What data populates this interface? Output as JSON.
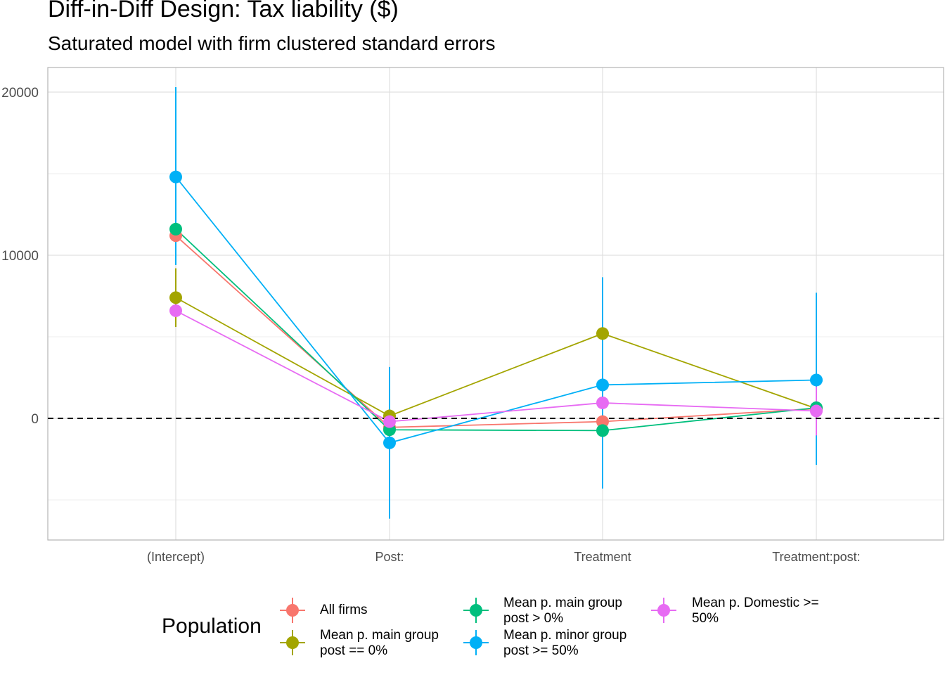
{
  "chart_data": {
    "type": "scatter",
    "title": "Diff-in-Diff Design: Tax liability  ($)",
    "subtitle": "Saturated model with firm clustered standard errors",
    "categories": [
      "(Intercept)",
      "Post:",
      "Treatment",
      "Treatment:post:"
    ],
    "y_ticks": [
      "20000",
      "10000",
      "0"
    ],
    "ylim": [
      -7400,
      21500
    ],
    "reference_line": 0,
    "grid": true,
    "legend_title": "Population",
    "legend_position": "bottom",
    "series": [
      {
        "name": "All firms",
        "color": "#F8766D",
        "values": [
          11200,
          -550,
          -200,
          600
        ],
        "lower": [
          null,
          null,
          null,
          null
        ],
        "upper": [
          null,
          null,
          null,
          null
        ]
      },
      {
        "name": "Mean p. main group\npost == 0%",
        "color": "#A3A500",
        "values": [
          7400,
          150,
          5200,
          600
        ],
        "lower": [
          5600,
          null,
          null,
          null
        ],
        "upper": [
          9200,
          null,
          null,
          null
        ]
      },
      {
        "name": "Mean p. main group\npost > 0%",
        "color": "#00BF7D",
        "values": [
          11600,
          -700,
          -750,
          650
        ],
        "lower": [
          null,
          null,
          null,
          null
        ],
        "upper": [
          null,
          null,
          null,
          null
        ]
      },
      {
        "name": "Mean p. minor group\npost >= 50%",
        "color": "#00B0F6",
        "values": [
          14800,
          -1500,
          2050,
          2350
        ],
        "lower": [
          9400,
          -6150,
          -4300,
          -2850
        ],
        "upper": [
          20300,
          3150,
          8650,
          7700
        ]
      },
      {
        "name": "Mean p. Domestic >=\n50%",
        "color": "#E76BF3",
        "values": [
          6600,
          -200,
          950,
          450
        ],
        "lower": [
          null,
          null,
          null,
          -1050
        ],
        "upper": [
          null,
          null,
          2900,
          1950
        ]
      }
    ]
  }
}
